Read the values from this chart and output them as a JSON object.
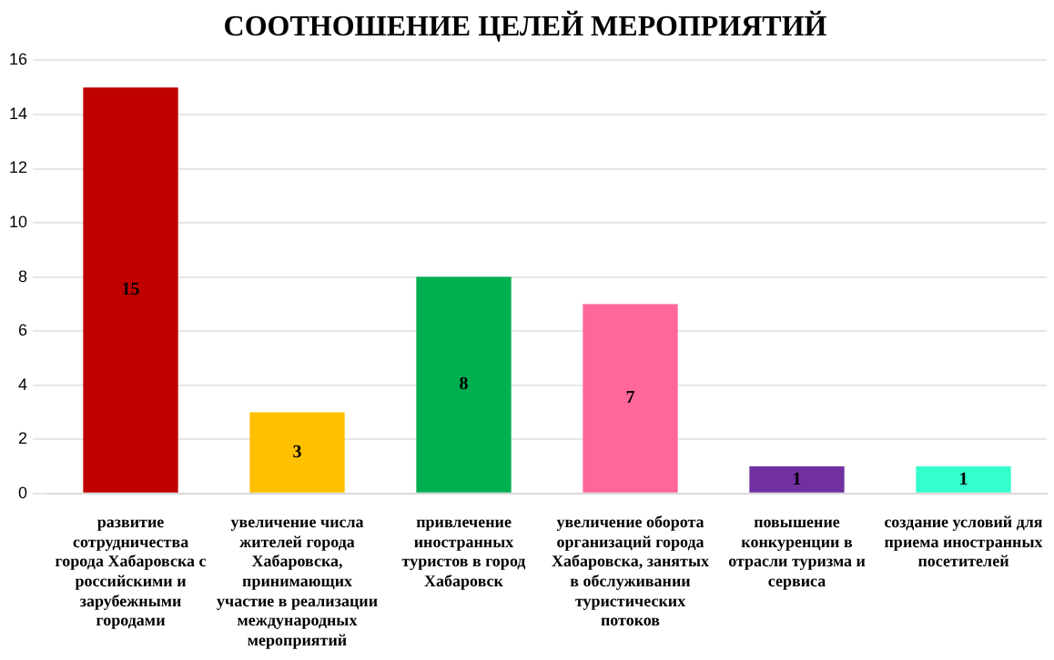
{
  "chart_data": {
    "type": "bar",
    "title": "СООТНОШЕНИЕ ЦЕЛЕЙ МЕРОПРИЯТИЙ",
    "categories": [
      "развитие сотрудничества города Хабаровска с российскими и зарубежными городами",
      "увеличение числа жителей города Хабаровска, принимающих участие в реализации международных мероприятий",
      "привлечение иностранных туристов в город Хабаровск",
      "увеличение оборота организаций города Хабаровска, занятых в обслуживании туристических потоков",
      "повышение конкуренции в отрасли туризма и сервиса",
      "создание условий для приема иностранных посетителей"
    ],
    "values": [
      15,
      3,
      8,
      7,
      1,
      1
    ],
    "colors": [
      "#c00000",
      "#ffc000",
      "#00b050",
      "#ff6699",
      "#7030a0",
      "#33ffcc"
    ],
    "ylim": [
      0,
      16
    ],
    "yticks": [
      0,
      2,
      4,
      6,
      8,
      10,
      12,
      14,
      16
    ],
    "grid": "y",
    "legend": false,
    "data_labels": true
  }
}
